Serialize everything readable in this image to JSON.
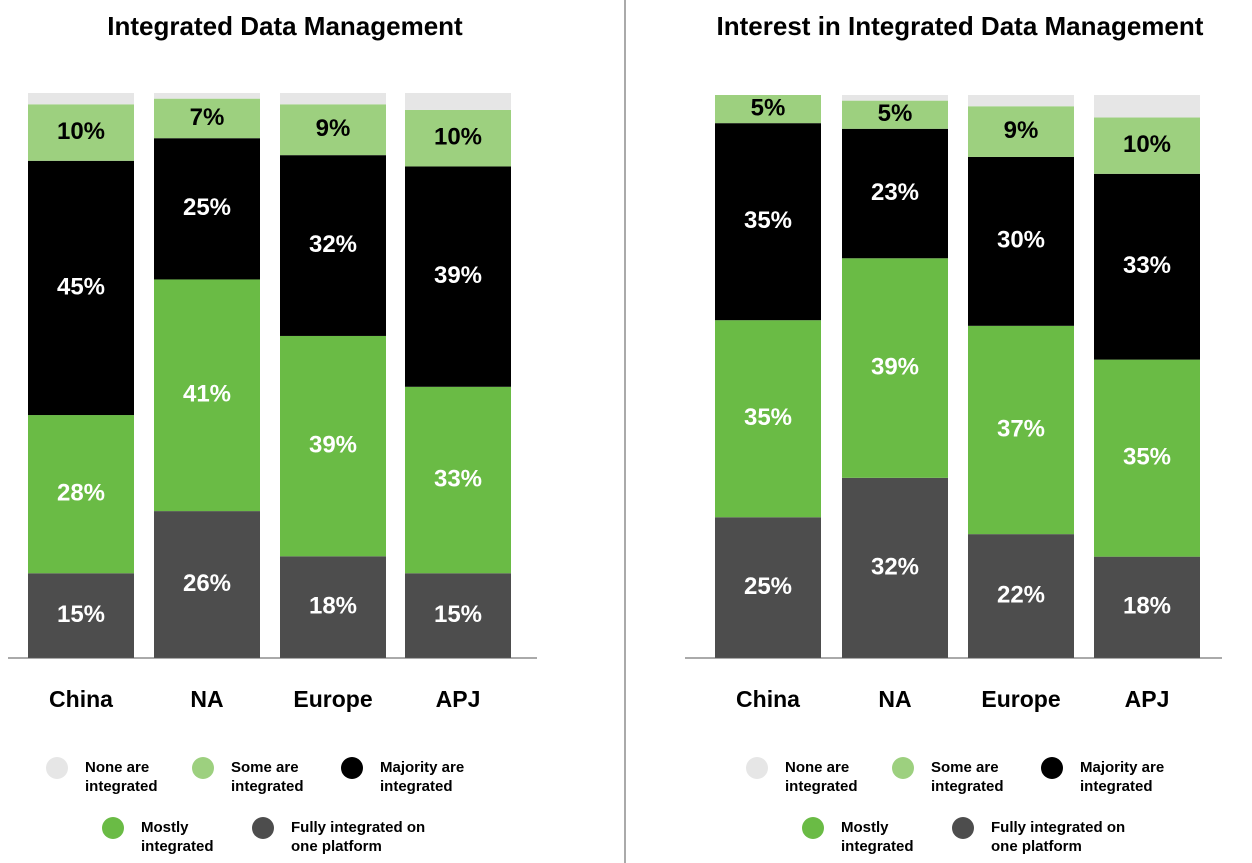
{
  "chart_data": [
    {
      "type": "bar",
      "stacked": true,
      "title": "Integrated Data Management",
      "categories": [
        "China",
        "NA",
        "Europe",
        "APJ"
      ],
      "ylim": [
        0,
        100
      ],
      "series": [
        {
          "name": "Fully integrated on one platform",
          "color": "#4d4d4d",
          "values": [
            15,
            26,
            18,
            15
          ],
          "value_labels": [
            "15%",
            "26%",
            "18%",
            "15%"
          ]
        },
        {
          "name": "Mostly integrated",
          "color": "#6abb45",
          "values": [
            28,
            41,
            39,
            33
          ],
          "value_labels": [
            "28%",
            "41%",
            "39%",
            "33%"
          ]
        },
        {
          "name": "Majority are integrated",
          "color": "#000000",
          "values": [
            45,
            25,
            32,
            39
          ],
          "value_labels": [
            "45%",
            "25%",
            "32%",
            "39%"
          ]
        },
        {
          "name": "Some are integrated",
          "color": "#9dd07f",
          "values": [
            10,
            7,
            9,
            10
          ],
          "value_labels": [
            "10%",
            "7%",
            "9%",
            "10%"
          ]
        },
        {
          "name": "None are integrated",
          "color": "#e6e6e6",
          "values": [
            2,
            1,
            2,
            3
          ]
        }
      ]
    },
    {
      "type": "bar",
      "stacked": true,
      "title": "Interest in Integrated Data Management",
      "categories": [
        "China",
        "NA",
        "Europe",
        "APJ"
      ],
      "ylim": [
        0,
        100
      ],
      "series": [
        {
          "name": "Fully integrated on one platform",
          "color": "#4d4d4d",
          "values": [
            25,
            32,
            22,
            18
          ],
          "value_labels": [
            "25%",
            "32%",
            "22%",
            "18%"
          ]
        },
        {
          "name": "Mostly integrated",
          "color": "#6abb45",
          "values": [
            35,
            39,
            37,
            35
          ],
          "value_labels": [
            "35%",
            "39%",
            "37%",
            "35%"
          ]
        },
        {
          "name": "Majority are integrated",
          "color": "#000000",
          "values": [
            35,
            23,
            30,
            33
          ],
          "value_labels": [
            "35%",
            "23%",
            "30%",
            "33%"
          ]
        },
        {
          "name": "Some are integrated",
          "color": "#9dd07f",
          "values": [
            5,
            5,
            9,
            10
          ],
          "value_labels": [
            "5%",
            "5%",
            "9%",
            "10%"
          ]
        },
        {
          "name": "None are integrated",
          "color": "#e6e6e6",
          "values": [
            0,
            1,
            2,
            4
          ]
        }
      ]
    }
  ]
}
